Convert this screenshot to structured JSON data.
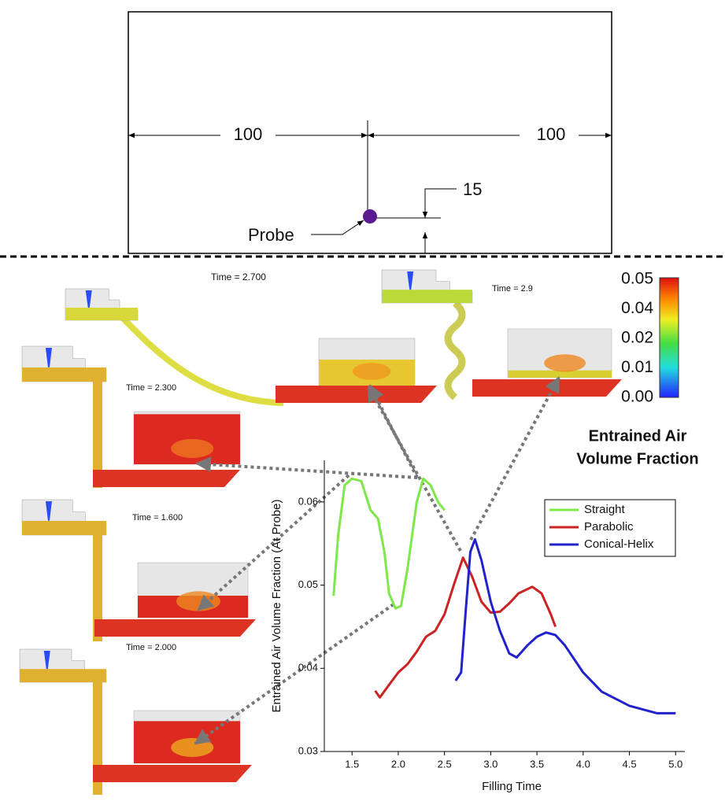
{
  "diagram": {
    "dimensions": [
      "100",
      "100",
      "15"
    ],
    "probe_label": "Probe"
  },
  "panels": {
    "time_labels": [
      "Time = 2.700",
      "Time = 2.9",
      "Time = 2.300",
      "Time = 1.600",
      "Time = 2.000"
    ]
  },
  "colorbar": {
    "title_lines": [
      "Entrained Air",
      "Volume Fraction"
    ],
    "tick_labels": [
      "0.05",
      "0.04",
      "0.02",
      "0.01",
      "0.00"
    ]
  },
  "chart_data": {
    "type": "line",
    "x_label": "Filling Time",
    "y_label": "Entrained Air Volume Fraction (At Probe)",
    "xlim": [
      1.2,
      5.1
    ],
    "ylim": [
      0.03,
      0.065
    ],
    "xticks": [
      1.5,
      {
        "value": 2.0,
        "label": "2.0"
      },
      2.5,
      {
        "value": 3.0,
        "label": "3.0"
      },
      3.5,
      {
        "value": 4.0,
        "label": "4.0"
      },
      4.5,
      {
        "value": 5.0,
        "label": "5.0"
      }
    ],
    "yticks": [
      0.03,
      0.04,
      0.05,
      0.06
    ],
    "legend": "upper-right",
    "series": [
      {
        "name": "Straight",
        "color": "#7ee84a",
        "x": [
          1.3,
          1.35,
          1.42,
          1.5,
          1.6,
          1.7,
          1.78,
          1.85,
          1.9,
          1.97,
          2.03,
          2.1,
          2.2,
          2.27,
          2.35,
          2.43,
          2.5
        ],
        "values": [
          0.0487,
          0.056,
          0.062,
          0.0628,
          0.0625,
          0.059,
          0.058,
          0.054,
          0.049,
          0.0472,
          0.0475,
          0.052,
          0.06,
          0.0628,
          0.062,
          0.06,
          0.059
        ]
      },
      {
        "name": "Parabolic",
        "color": "#cc2222",
        "x": [
          1.75,
          1.8,
          1.9,
          2.0,
          2.1,
          2.2,
          2.3,
          2.4,
          2.5,
          2.6,
          2.7,
          2.8,
          2.9,
          3.0,
          3.1,
          3.2,
          3.3,
          3.45,
          3.55,
          3.65,
          3.7
        ],
        "values": [
          0.0373,
          0.0365,
          0.038,
          0.0395,
          0.0405,
          0.042,
          0.0438,
          0.0445,
          0.0465,
          0.05,
          0.0533,
          0.051,
          0.048,
          0.0467,
          0.0468,
          0.0478,
          0.049,
          0.0498,
          0.049,
          0.0465,
          0.045
        ]
      },
      {
        "name": "Conical-Helix",
        "color": "#2222cc",
        "x": [
          2.62,
          2.68,
          2.73,
          2.78,
          2.83,
          2.9,
          3.0,
          3.1,
          3.2,
          3.28,
          3.4,
          3.5,
          3.6,
          3.7,
          3.8,
          4.0,
          4.2,
          4.5,
          4.8,
          5.0
        ],
        "values": [
          0.0385,
          0.0395,
          0.047,
          0.054,
          0.0555,
          0.053,
          0.048,
          0.0445,
          0.0418,
          0.0413,
          0.0428,
          0.0438,
          0.0443,
          0.044,
          0.0428,
          0.0395,
          0.0372,
          0.0355,
          0.0346,
          0.0346
        ]
      }
    ]
  }
}
